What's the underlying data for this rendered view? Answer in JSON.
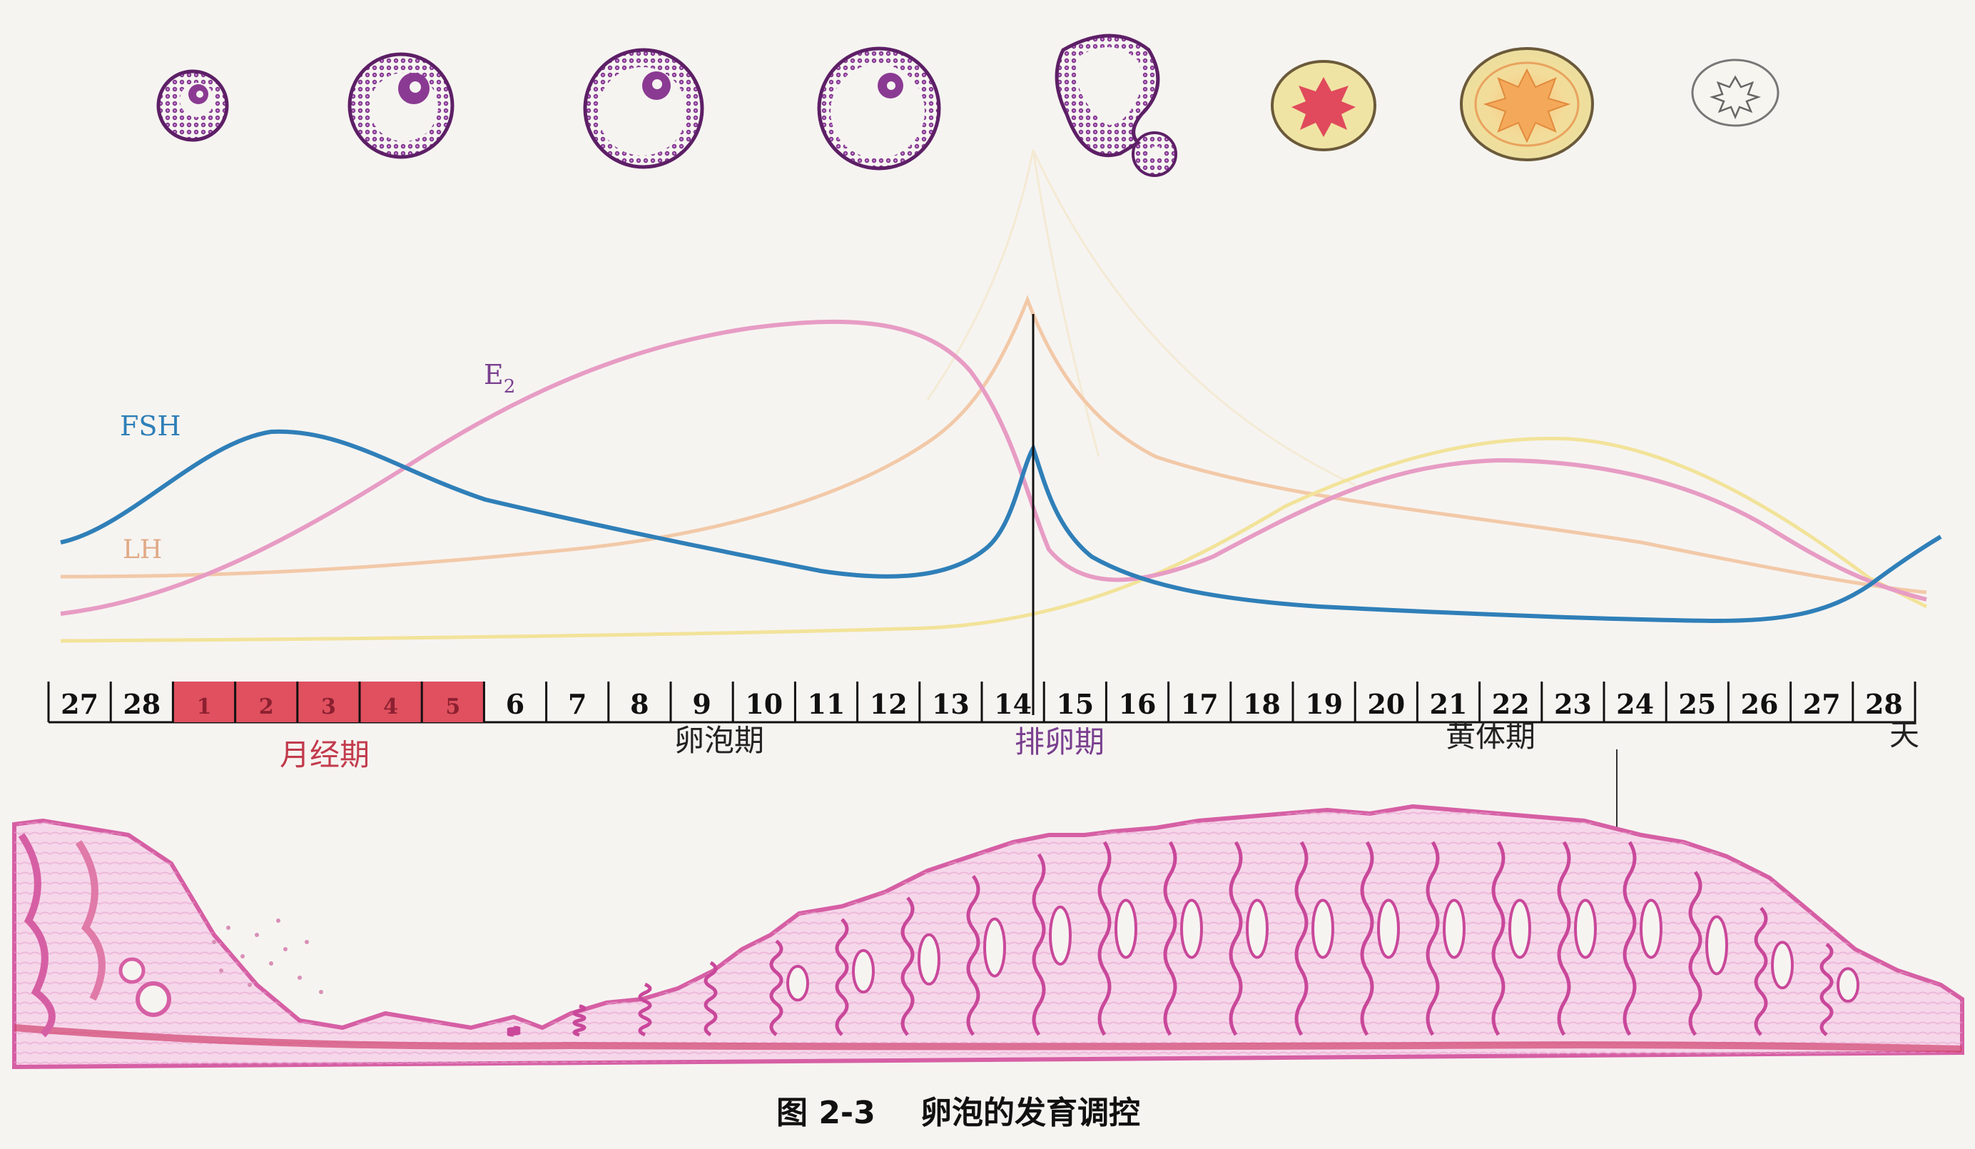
{
  "hormones": {
    "fsh": {
      "label": "FSH",
      "color": "#2f7fb8"
    },
    "lh": {
      "label": "LH",
      "color": "#e0aa86"
    },
    "e2": {
      "label": "E",
      "sub": "2",
      "color": "#e79cc4"
    },
    "p": {
      "color": "#eedd8e"
    }
  },
  "timeline": {
    "days": [
      "27",
      "28",
      "1",
      "2",
      "3",
      "4",
      "5",
      "6",
      "7",
      "8",
      "9",
      "10",
      "11",
      "12",
      "13",
      "14",
      "15",
      "16",
      "17",
      "18",
      "19",
      "20",
      "21",
      "22",
      "23",
      "24",
      "25",
      "26",
      "27",
      "28"
    ],
    "menses_color": "#e0505f",
    "unit": "天"
  },
  "phases": {
    "menstrual": {
      "label": "月经期",
      "color": "#c23b4c"
    },
    "follicular": {
      "label": "卵泡期"
    },
    "ovulation": {
      "label": "排卵期",
      "color": "#7a3f8f"
    },
    "luteal": {
      "label": "黄体期"
    }
  },
  "caption": {
    "fig": "图 2-3",
    "title": "卵泡的发育调控"
  },
  "colors": {
    "follicle": "#8a3a92",
    "corpus_luteum_fill": "#f2e6a6",
    "endometrium": "#d65fa4"
  }
}
